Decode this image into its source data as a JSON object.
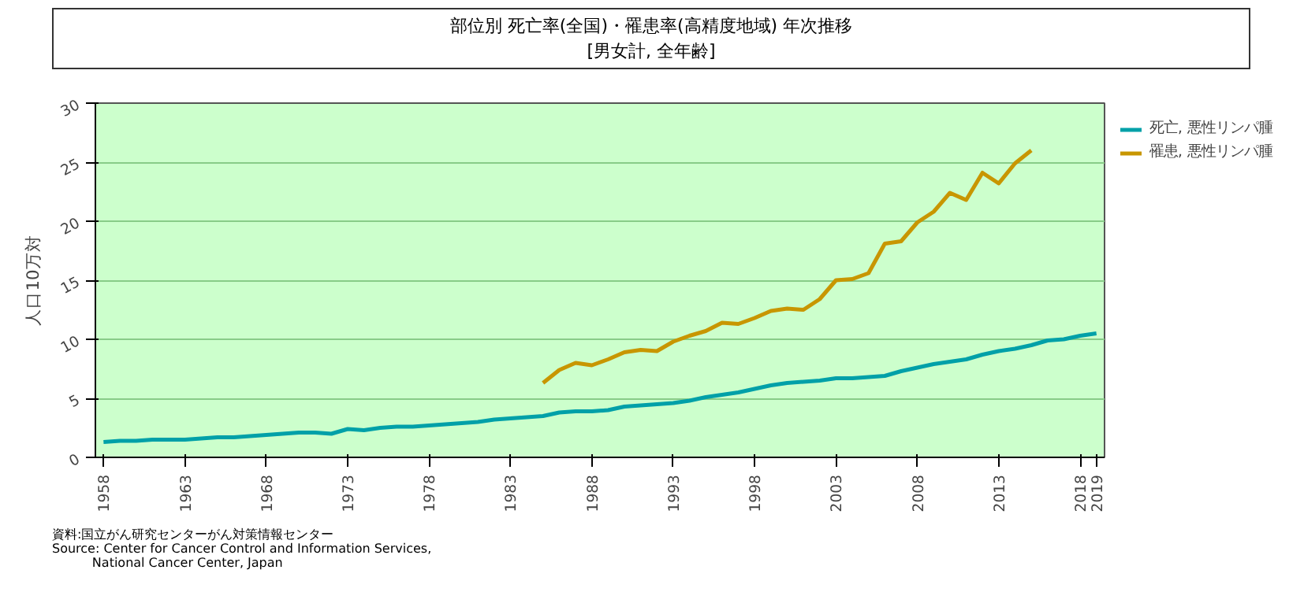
{
  "chart_data": {
    "type": "line",
    "title": "部位別 死亡率(全国)・罹患率(高精度地域) 年次推移",
    "subtitle": "[男女計, 全年齢]",
    "ylabel": "人口10万対",
    "annotations": [
      "資料:国立がん研究センターがん対策情報センター",
      "Source: Center for Cancer Control and Information Services,",
      "National Cancer Center, Japan"
    ],
    "xlim": [
      1957.5,
      2019.5
    ],
    "xticks": [
      1958,
      1963,
      1968,
      1973,
      1978,
      1983,
      1988,
      1993,
      1998,
      2003,
      2008,
      2013,
      2018,
      2019
    ],
    "ylim": [
      0,
      30
    ],
    "yticks": [
      0,
      5,
      10,
      15,
      20,
      25,
      30
    ],
    "grid": "y",
    "legend": "top right",
    "marker": "none",
    "line_style": "solid",
    "series": [
      {
        "name": "死亡, 悪性リンパ腫",
        "color": "#00a0a8",
        "x": [
          1958,
          1959,
          1960,
          1961,
          1962,
          1963,
          1964,
          1965,
          1966,
          1967,
          1968,
          1969,
          1970,
          1971,
          1972,
          1973,
          1974,
          1975,
          1976,
          1977,
          1978,
          1979,
          1980,
          1981,
          1982,
          1983,
          1984,
          1985,
          1986,
          1987,
          1988,
          1989,
          1990,
          1991,
          1992,
          1993,
          1994,
          1995,
          1996,
          1997,
          1998,
          1999,
          2000,
          2001,
          2002,
          2003,
          2004,
          2005,
          2006,
          2007,
          2008,
          2009,
          2010,
          2011,
          2012,
          2013,
          2014,
          2015,
          2016,
          2017,
          2018,
          2019
        ],
        "values": [
          1.3,
          1.4,
          1.4,
          1.5,
          1.5,
          1.5,
          1.6,
          1.7,
          1.7,
          1.8,
          1.9,
          2.0,
          2.1,
          2.1,
          2.0,
          2.4,
          2.3,
          2.5,
          2.6,
          2.6,
          2.7,
          2.8,
          2.9,
          3.0,
          3.2,
          3.3,
          3.4,
          3.5,
          3.8,
          3.9,
          3.9,
          4.0,
          4.3,
          4.4,
          4.5,
          4.6,
          4.8,
          5.1,
          5.3,
          5.5,
          5.8,
          6.1,
          6.3,
          6.4,
          6.5,
          6.7,
          6.7,
          6.8,
          6.9,
          7.3,
          7.6,
          7.9,
          8.1,
          8.3,
          8.7,
          9.0,
          9.2,
          9.5,
          9.9,
          10.0,
          10.3,
          10.5
        ]
      },
      {
        "name": "罹患, 悪性リンパ腫",
        "color": "#c89600",
        "x": [
          1985,
          1986,
          1987,
          1988,
          1989,
          1990,
          1991,
          1992,
          1993,
          1994,
          1995,
          1996,
          1997,
          1998,
          1999,
          2000,
          2001,
          2002,
          2003,
          2004,
          2005,
          2006,
          2007,
          2008,
          2009,
          2010,
          2011,
          2012,
          2013,
          2014,
          2015
        ],
        "values": [
          6.3,
          7.4,
          8.0,
          7.8,
          8.3,
          8.9,
          9.1,
          9.0,
          9.8,
          10.3,
          10.7,
          11.4,
          11.3,
          11.8,
          12.4,
          12.6,
          12.5,
          13.4,
          15.0,
          15.1,
          15.6,
          18.1,
          18.3,
          19.9,
          20.8,
          22.4,
          21.8,
          24.1,
          23.2,
          24.9,
          26.0
        ]
      }
    ]
  }
}
